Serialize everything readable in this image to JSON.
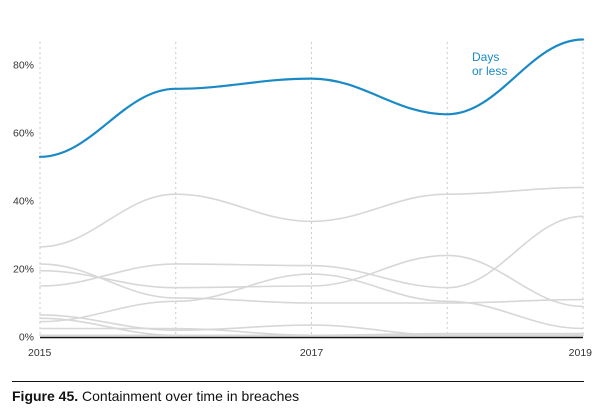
{
  "chart_data": {
    "type": "line",
    "x": [
      2015,
      2016,
      2017,
      2018,
      2019
    ],
    "x_tick_labels": [
      "2015",
      "2017",
      "2019"
    ],
    "y_tick_labels": [
      "0%",
      "20%",
      "40%",
      "60%",
      "80%"
    ],
    "ylim": [
      0,
      87
    ],
    "grid": "vertical dashed at x ticks",
    "series": [
      {
        "name": "Days or less",
        "highlight": true,
        "values": [
          53,
          73,
          76,
          65.5,
          87.5
        ]
      },
      {
        "values": [
          26.5,
          42,
          34,
          42,
          44
        ]
      },
      {
        "values": [
          21.5,
          11.5,
          10,
          10,
          11
        ]
      },
      {
        "values": [
          19.5,
          14.5,
          15,
          24,
          9
        ]
      },
      {
        "values": [
          15,
          21.5,
          21,
          14.5,
          35.5
        ]
      },
      {
        "values": [
          6.5,
          2,
          3.5,
          0.5,
          0.5
        ]
      },
      {
        "values": [
          5.5,
          0.5,
          0.5,
          0.5,
          0.5
        ]
      },
      {
        "values": [
          4.5,
          10.5,
          18.5,
          10.5,
          2.5
        ]
      },
      {
        "values": [
          2.5,
          2.5,
          0.5,
          1,
          1
        ]
      },
      {
        "values": [
          0.5,
          0.5,
          0.5,
          0.5,
          0.5
        ]
      }
    ],
    "colors": {
      "highlight": "#1a8ac6",
      "other": "#d7d7d7",
      "grid": "#cccccc",
      "axis": "#111111"
    }
  },
  "annotation": {
    "line1": "Days",
    "line2": "or less"
  },
  "caption": {
    "label": "Figure 45.",
    "text": " Containment over time in breaches"
  }
}
